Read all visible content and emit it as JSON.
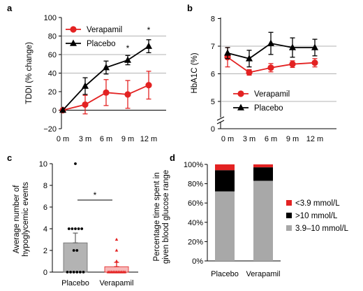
{
  "colors": {
    "red": "#e32222",
    "black": "#000000",
    "grey": "#a8a8a8",
    "pink": "#f7b8b8",
    "barGrey": "#b3b3b3"
  },
  "chart_data": [
    {
      "panel": "a",
      "type": "line",
      "x": [
        "0 m",
        "3 m",
        "6 m",
        "9 m",
        "12 m"
      ],
      "ylabel": "TDDI (% change)",
      "ylim": [
        -20,
        100
      ],
      "yticks": [
        -20,
        0,
        20,
        40,
        60,
        80,
        100
      ],
      "legend_position": "top-left",
      "series": [
        {
          "name": "Verapamil",
          "color": "#e32222",
          "marker": "circle",
          "values": [
            0,
            6,
            19,
            17,
            27
          ],
          "err": [
            0,
            10,
            14,
            15,
            15
          ]
        },
        {
          "name": "Placebo",
          "color": "#000000",
          "marker": "triangle",
          "values": [
            0,
            26,
            46,
            54,
            69
          ],
          "err": [
            0,
            9,
            7,
            5,
            7
          ]
        }
      ],
      "annotations": [
        "*",
        "*"
      ]
    },
    {
      "panel": "b",
      "type": "line",
      "x": [
        "0 m",
        "3 m",
        "6 m",
        "9 m",
        "12 m"
      ],
      "ylabel": "HbA1C (%)",
      "ylim": [
        4,
        8
      ],
      "yticks": [
        0,
        5,
        6,
        7,
        8
      ],
      "axis_break": true,
      "legend_position": "bottom-center",
      "series": [
        {
          "name": "Verapamil",
          "color": "#e32222",
          "marker": "circle",
          "values": [
            6.6,
            6.05,
            6.22,
            6.35,
            6.4
          ],
          "err": [
            0.35,
            0.1,
            0.15,
            0.12,
            0.15
          ]
        },
        {
          "name": "Placebo",
          "color": "#000000",
          "marker": "triangle",
          "values": [
            6.75,
            6.55,
            7.1,
            6.95,
            6.95
          ],
          "err": [
            0.2,
            0.3,
            0.4,
            0.35,
            0.3
          ]
        }
      ]
    },
    {
      "panel": "c",
      "type": "bar",
      "categories": [
        "Placebo",
        "Verapamil"
      ],
      "values": [
        2.7,
        0.5
      ],
      "err": [
        0.9,
        0.4
      ],
      "ylabel": "Average number of hypoglycemic events",
      "ylim": [
        0,
        10
      ],
      "yticks": [
        0,
        2,
        4,
        6,
        8,
        10
      ],
      "annotation": "*",
      "points": {
        "Placebo": [
          10,
          4,
          4,
          4,
          4,
          4,
          2,
          2,
          0,
          0,
          0,
          0,
          0,
          0
        ],
        "Verapamil": [
          3,
          2,
          1,
          0,
          0,
          0,
          0,
          0,
          0,
          0,
          0,
          0,
          0,
          0
        ]
      }
    },
    {
      "panel": "d",
      "type": "bar",
      "stacked": true,
      "categories": [
        "Placebo",
        "Verapamil"
      ],
      "ylabel": "Percentage time spent in given blood glucose range",
      "ylim": [
        0,
        100
      ],
      "yticks": [
        "0%",
        "20%",
        "40%",
        "60%",
        "80%",
        "100%"
      ],
      "legend_position": "right",
      "series": [
        {
          "name": "3.9–10 mmol/L",
          "color": "#a8a8a8",
          "values": [
            72,
            83
          ]
        },
        {
          "name": ">10 mmol/L",
          "color": "#000000",
          "values": [
            22,
            14
          ]
        },
        {
          "name": "<3.9 mmol/L",
          "color": "#e32222",
          "values": [
            6,
            3
          ]
        }
      ]
    }
  ]
}
